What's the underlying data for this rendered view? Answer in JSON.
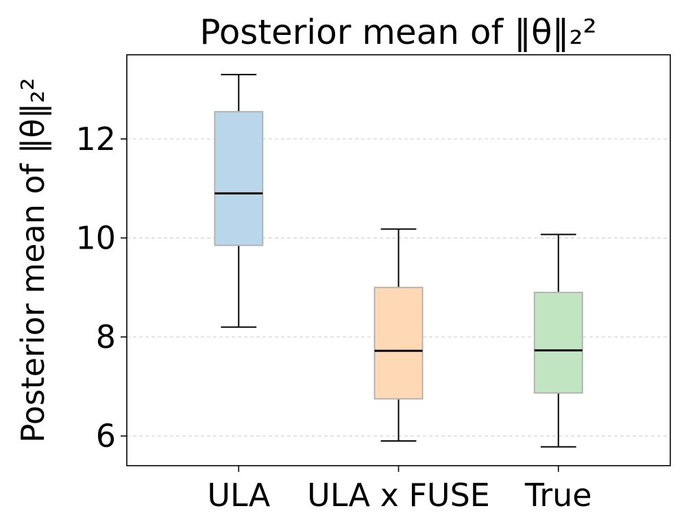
{
  "chart_data": {
    "type": "box",
    "title": "Posterior mean of ‖θ‖₂²",
    "xlabel": "",
    "ylabel": "Posterior mean of ‖θ‖₂²",
    "ylim": [
      5.4,
      13.7
    ],
    "yticks": [
      6,
      8,
      10,
      12
    ],
    "ytick_labels": [
      "6",
      "8",
      "10",
      "12"
    ],
    "grid": "y-dashed",
    "categories": [
      "ULA",
      "ULA x FUSE",
      "True"
    ],
    "boxes": [
      {
        "label": "ULA",
        "whisker_low": 8.2,
        "q1": 9.85,
        "median": 10.9,
        "q3": 12.55,
        "whisker_high": 13.3,
        "color": "#bad6ea"
      },
      {
        "label": "ULA x FUSE",
        "whisker_low": 5.9,
        "q1": 6.75,
        "median": 7.72,
        "q3": 9.0,
        "whisker_high": 10.18,
        "color": "#ffd9b6"
      },
      {
        "label": "True",
        "whisker_low": 5.78,
        "q1": 6.87,
        "median": 7.73,
        "q3": 8.9,
        "whisker_high": 10.07,
        "color": "#c1e4c1"
      }
    ]
  }
}
